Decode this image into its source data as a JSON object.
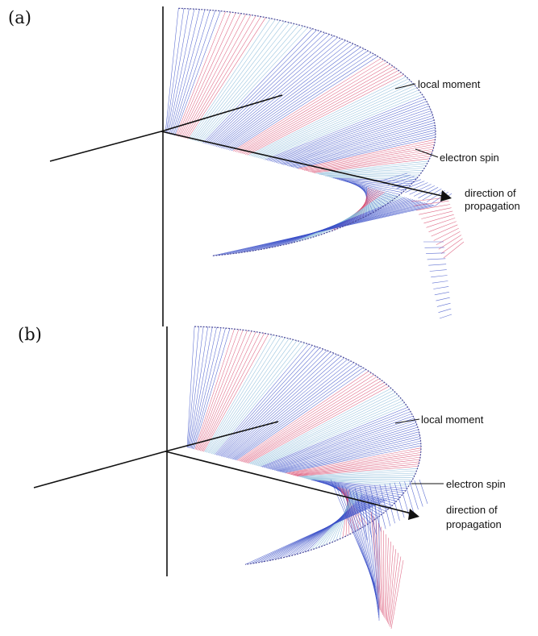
{
  "panels": [
    {
      "label": "(a)",
      "annotations": {
        "local_moment": "local moment",
        "electron_spin": "electron spin",
        "direction_line1": "direction of",
        "direction_line2": "propagation"
      }
    },
    {
      "label": "(b)",
      "annotations": {
        "local_moment": "local moment",
        "electron_spin": "electron spin",
        "direction_line1": "direction of",
        "direction_line2": "propagation"
      }
    }
  ],
  "colors": {
    "blue_lines": "#3a4fc8",
    "pink_lines": "#d8486c",
    "light_blue_lines": "#7fb4d6",
    "axis": "#111111"
  }
}
